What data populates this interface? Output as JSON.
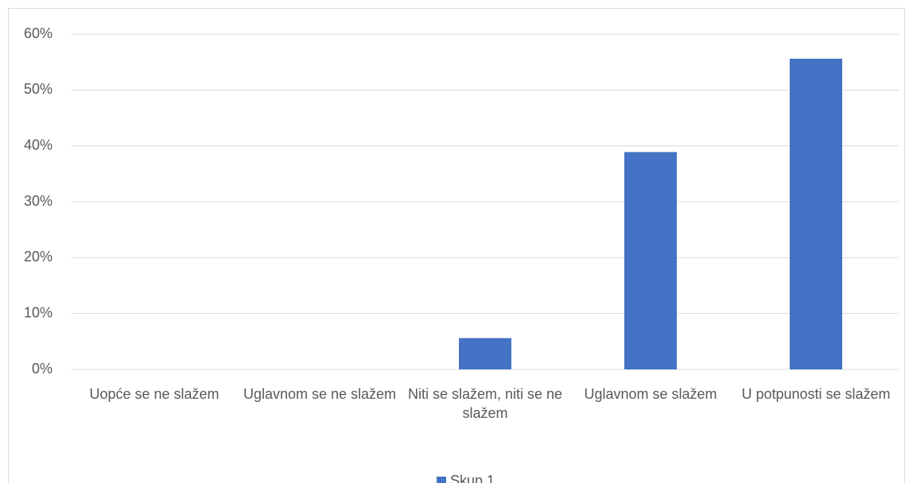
{
  "chart_data": {
    "type": "bar",
    "categories": [
      "Uopće se ne slažem",
      "Uglavnom se ne slažem",
      "Niti se slažem, niti se ne slažem",
      "Uglavnom se slažem",
      "U potpunosti se slažem"
    ],
    "series": [
      {
        "name": "Skup 1",
        "color": "#4472c4",
        "values": [
          0,
          0,
          5.6,
          38.9,
          55.6
        ]
      }
    ],
    "ylim": [
      0,
      60
    ],
    "yticks": [
      {
        "value": 0,
        "label": "0%"
      },
      {
        "value": 10,
        "label": "10%"
      },
      {
        "value": 20,
        "label": "20%"
      },
      {
        "value": 30,
        "label": "30%"
      },
      {
        "value": 40,
        "label": "40%"
      },
      {
        "value": 50,
        "label": "50%"
      },
      {
        "value": 60,
        "label": "60%"
      }
    ],
    "grid": true,
    "legend": "bottom"
  }
}
